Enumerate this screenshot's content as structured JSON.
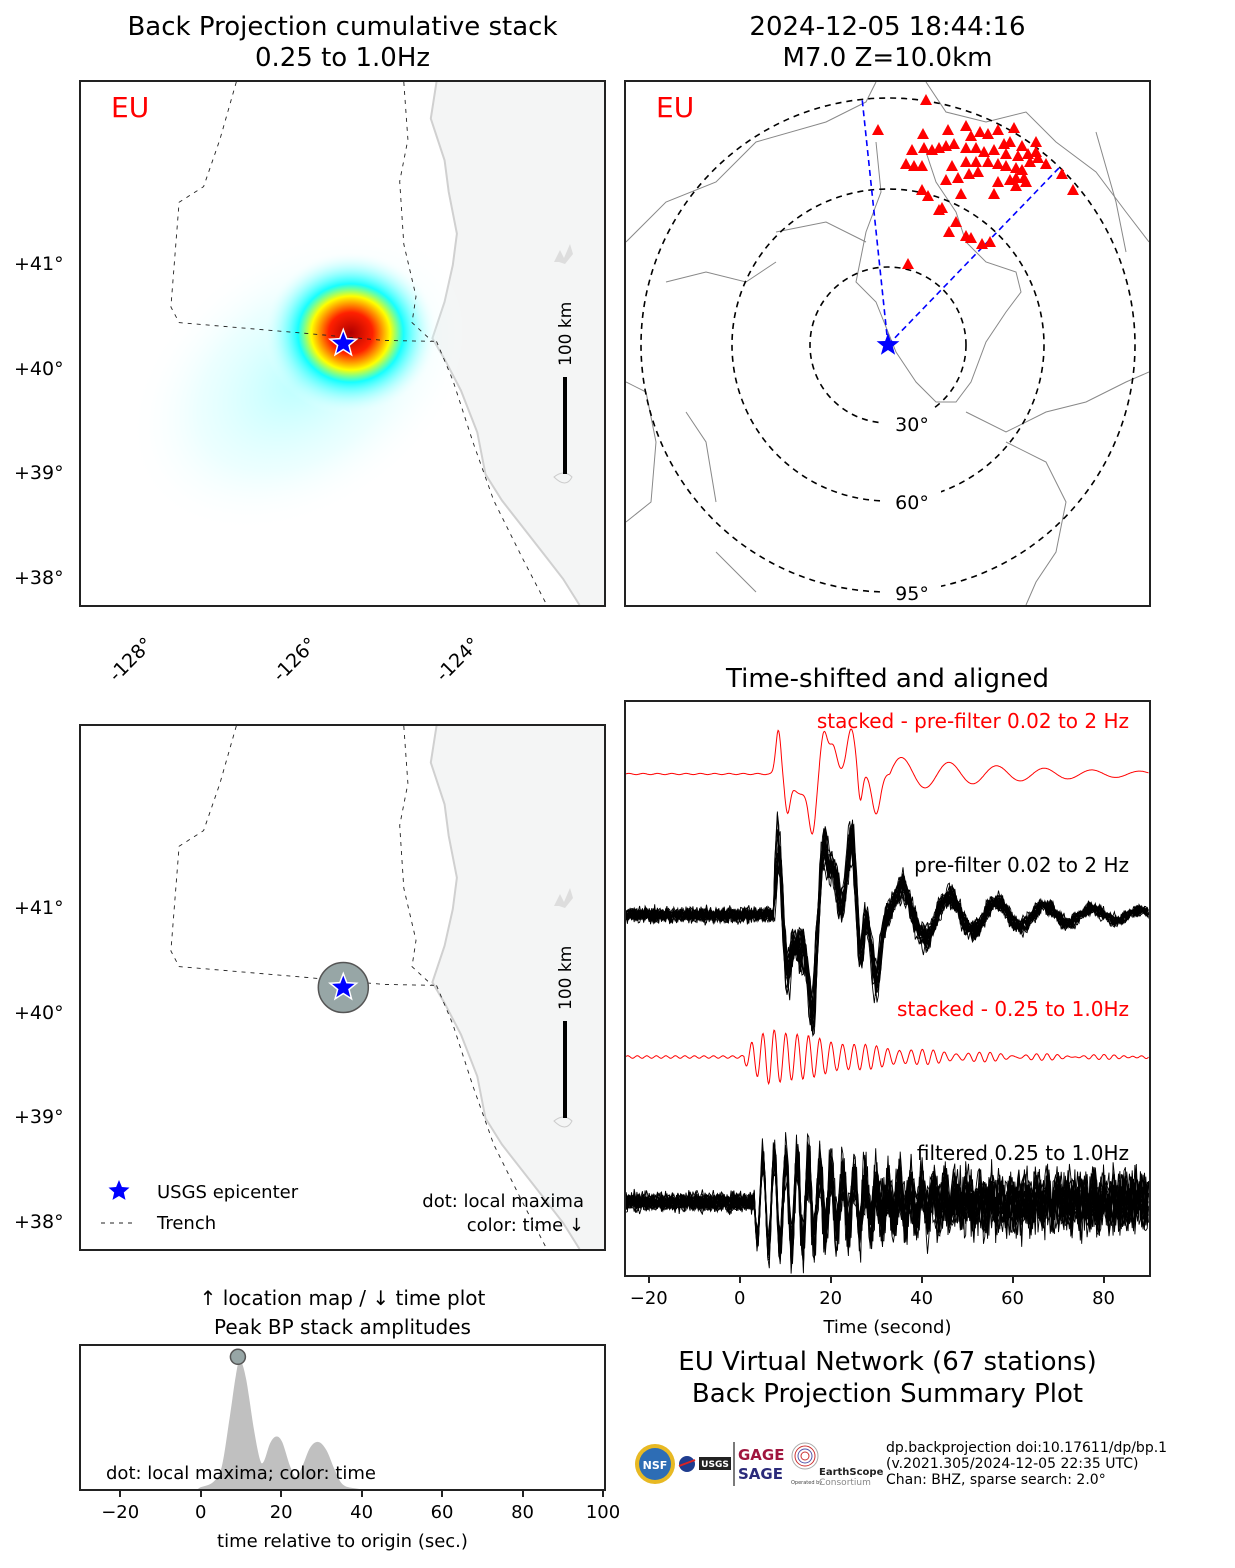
{
  "chart_data": [
    {
      "id": "bp-map",
      "type": "heatmap",
      "title": "Back Projection cumulative stack",
      "subtitle": "0.25 to 1.0Hz",
      "network_label": "EU",
      "network_label_color": "#ff0000",
      "xlim": [
        -128.7,
        -122.3
      ],
      "ylim": [
        37.75,
        42.75
      ],
      "xticks": [
        "-128°",
        "-126°",
        "-124°"
      ],
      "xtick_values": [
        -128,
        -126,
        -124
      ],
      "yticks": [
        "+41°",
        "+40°",
        "+39°",
        "+38°"
      ],
      "ytick_values": [
        41,
        40,
        39,
        38
      ],
      "scalebar_label": "100 km",
      "epicenter": {
        "lon": -125.49,
        "lat": 40.25,
        "color": "#0000ff"
      },
      "heat_peak": {
        "lon": -125.4,
        "lat": 40.35
      },
      "colormap": [
        "#ffffff",
        "#00ffff",
        "#ffff00",
        "#ff0000",
        "#b00000"
      ]
    },
    {
      "id": "station-map",
      "type": "scatter",
      "title_line1": "2024-12-05 18:44:16",
      "title_line2": "M7.0 Z=10.0km",
      "network_label": "EU",
      "network_label_color": "#ff0000",
      "distance_rings_deg": [
        30,
        60,
        95
      ],
      "ring_labels": [
        "30°",
        "60°",
        "95°"
      ],
      "station_marker_color": "#ff0000",
      "azimuth_lines_color": "#0000ff",
      "azimuth_range_deg": [
        -6,
        44
      ],
      "station_count": 67
    },
    {
      "id": "local-maxima-map",
      "type": "scatter",
      "xlim": [
        -128.7,
        -122.3
      ],
      "ylim": [
        37.75,
        42.75
      ],
      "yticks": [
        "+41°",
        "+40°",
        "+39°",
        "+38°"
      ],
      "ytick_values": [
        41,
        40,
        39,
        38
      ],
      "scalebar_label": "100 km",
      "points": [
        {
          "lon": -125.49,
          "lat": 40.25,
          "time": 9.0,
          "color": "#97a6a6"
        }
      ],
      "legend": [
        {
          "symbol": "star",
          "label": "USGS epicenter",
          "color": "#0000ff"
        },
        {
          "symbol": "dashed-line",
          "label": "Trench"
        }
      ],
      "annotation_line1": "dot: local maxima",
      "annotation_line2": "color: time ↓"
    },
    {
      "id": "peak-amplitudes",
      "type": "area",
      "title_line1": "↑ location map / ↓ time plot",
      "title_line2": "Peak BP stack amplitudes",
      "xlabel": "time relative to origin (sec.)",
      "xlim": [
        -30,
        100
      ],
      "ylim": [
        0,
        1.05
      ],
      "xticks": [
        "−20",
        "0",
        "20",
        "40",
        "60",
        "80",
        "100"
      ],
      "xtick_values": [
        -20,
        0,
        20,
        40,
        60,
        80,
        100
      ],
      "x": [
        -30,
        -5,
        0,
        3,
        5,
        7,
        8.5,
        9.5,
        11,
        13,
        14.5,
        15.5,
        17,
        18.5,
        20,
        22,
        23.5,
        25,
        27,
        29,
        31,
        33,
        35,
        38,
        42,
        50,
        58,
        65,
        72,
        80,
        86,
        100
      ],
      "y": [
        0,
        0,
        0.03,
        0.07,
        0.18,
        0.55,
        0.85,
        0.96,
        0.83,
        0.45,
        0.23,
        0.22,
        0.35,
        0.4,
        0.36,
        0.18,
        0.1,
        0.18,
        0.32,
        0.36,
        0.3,
        0.16,
        0.05,
        0.02,
        0.01,
        0.005,
        0.015,
        0.005,
        0.004,
        0.015,
        0.0,
        0
      ],
      "fill_color": "#c0c0c0",
      "local_maxima": [
        {
          "time": 9.0,
          "amp": 1.0,
          "color": "#97a6a6"
        }
      ],
      "annotation": "dot: local maxima; color: time"
    },
    {
      "id": "waveforms",
      "type": "line",
      "title": "Time-shifted and aligned",
      "xlabel": "Time (second)",
      "xlim": [
        -25,
        90
      ],
      "xticks": [
        "−20",
        "0",
        "20",
        "40",
        "60",
        "80"
      ],
      "xtick_values": [
        -20,
        0,
        20,
        40,
        60,
        80
      ],
      "trace_count": 67,
      "series": [
        {
          "name": "stacked - pre-filter 0.02 to 2 Hz",
          "color": "#ff0000",
          "kind": "stack-broadband",
          "onset_s": 7.5
        },
        {
          "name": "pre-filter 0.02 to 2 Hz",
          "color": "#000000",
          "kind": "traces-broadband",
          "onset_s": 7.5
        },
        {
          "name": "stacked - 0.25 to 1.0Hz",
          "color": "#ff0000",
          "kind": "stack-filtered",
          "onset_s": 3.0
        },
        {
          "name": "filtered 0.25 to 1.0Hz",
          "color": "#000000",
          "kind": "traces-filtered",
          "onset_s": 3.0
        }
      ]
    }
  ],
  "summary": {
    "title_line1": "EU Virtual Network (67 stations)",
    "title_line2": "Back Projection Summary Plot"
  },
  "credits": {
    "logos": [
      "NSF",
      "NASA",
      "USGS",
      "GAGE",
      "SAGE",
      "EarthScope",
      "Consortium"
    ],
    "operated_by": "Operated by",
    "line1": "dp.backprojection doi:10.17611/dp/bp.1",
    "line2": "(v.2021.305/2024-12-05 22:35 UTC)",
    "line3": "Chan: BHZ, sparse search: 2.0°"
  }
}
